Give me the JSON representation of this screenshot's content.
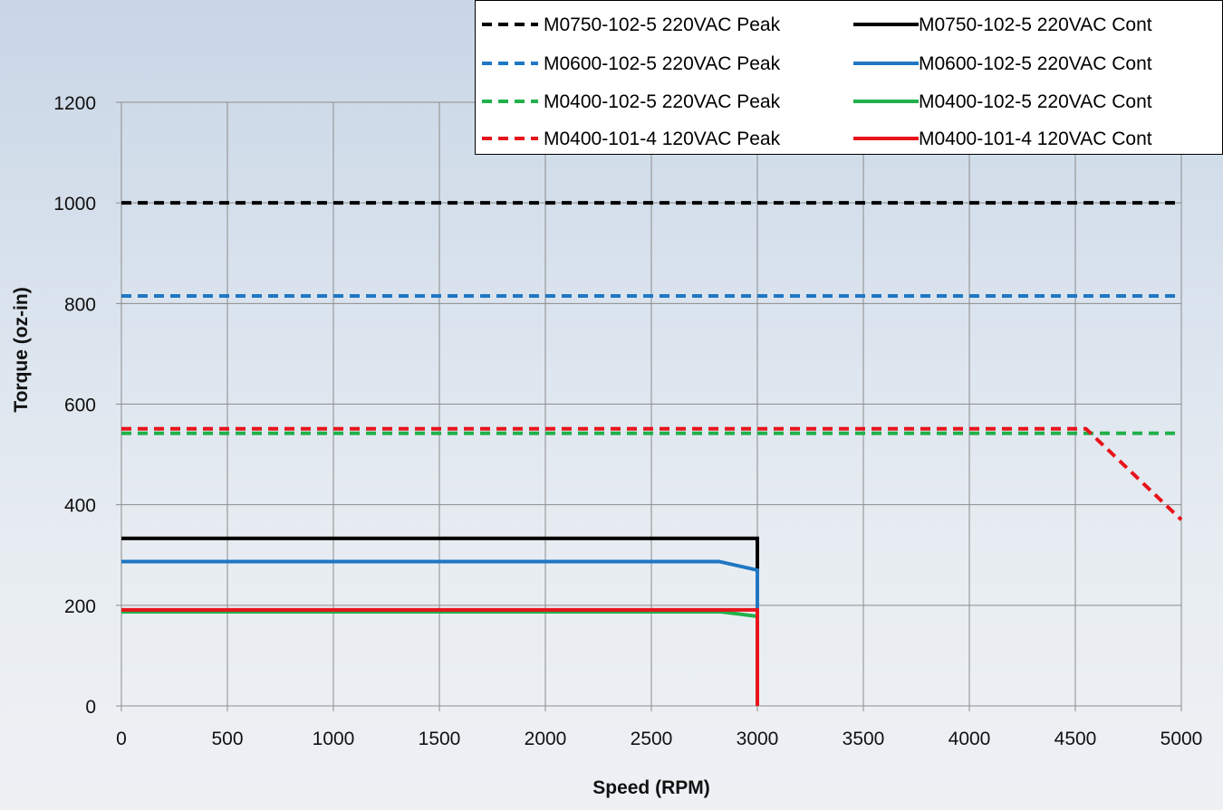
{
  "chart_data": {
    "type": "line",
    "title": "",
    "xlabel": "Speed (RPM)",
    "ylabel": "Torque (oz-in)",
    "xlim": [
      0,
      5000
    ],
    "ylim": [
      0,
      1200
    ],
    "xticks": [
      0,
      500,
      1000,
      1500,
      2000,
      2500,
      3000,
      3500,
      4000,
      4500,
      5000
    ],
    "yticks": [
      0,
      200,
      400,
      600,
      800,
      1000,
      1200
    ],
    "grid": true,
    "legend_position": "top-right",
    "series": [
      {
        "name": "M0750-102-5 220VAC Peak",
        "color": "#000000",
        "style": "dashed",
        "points": [
          [
            0,
            1000
          ],
          [
            5000,
            1000
          ]
        ]
      },
      {
        "name": "M0750-102-5 220VAC Cont",
        "color": "#000000",
        "style": "solid",
        "points": [
          [
            0,
            333
          ],
          [
            3000,
            333
          ],
          [
            3000,
            0
          ]
        ]
      },
      {
        "name": "M0600-102-5 220VAC Peak",
        "color": "#1f77c4",
        "style": "dashed",
        "points": [
          [
            0,
            815
          ],
          [
            5000,
            815
          ]
        ]
      },
      {
        "name": "M0600-102-5 220VAC Cont",
        "color": "#1f77c4",
        "style": "solid",
        "points": [
          [
            0,
            287
          ],
          [
            2820,
            287
          ],
          [
            3000,
            270
          ],
          [
            3000,
            0
          ]
        ]
      },
      {
        "name": "M0400-102-5 220VAC Peak",
        "color": "#21b04a",
        "style": "dashed",
        "points": [
          [
            0,
            542
          ],
          [
            5000,
            542
          ]
        ]
      },
      {
        "name": "M0400-102-5 220VAC Cont",
        "color": "#21b04a",
        "style": "solid",
        "points": [
          [
            0,
            187
          ],
          [
            2830,
            187
          ],
          [
            3000,
            178
          ],
          [
            3000,
            0
          ]
        ]
      },
      {
        "name": "M0400-101-4 120VAC Peak",
        "color": "#e8141b",
        "style": "dashed",
        "points": [
          [
            0,
            551
          ],
          [
            4550,
            551
          ],
          [
            5000,
            370
          ]
        ]
      },
      {
        "name": "M0400-101-4 120VAC Cont",
        "color": "#e8141b",
        "style": "solid",
        "points": [
          [
            0,
            191
          ],
          [
            3000,
            191
          ],
          [
            3000,
            0
          ]
        ]
      }
    ]
  }
}
